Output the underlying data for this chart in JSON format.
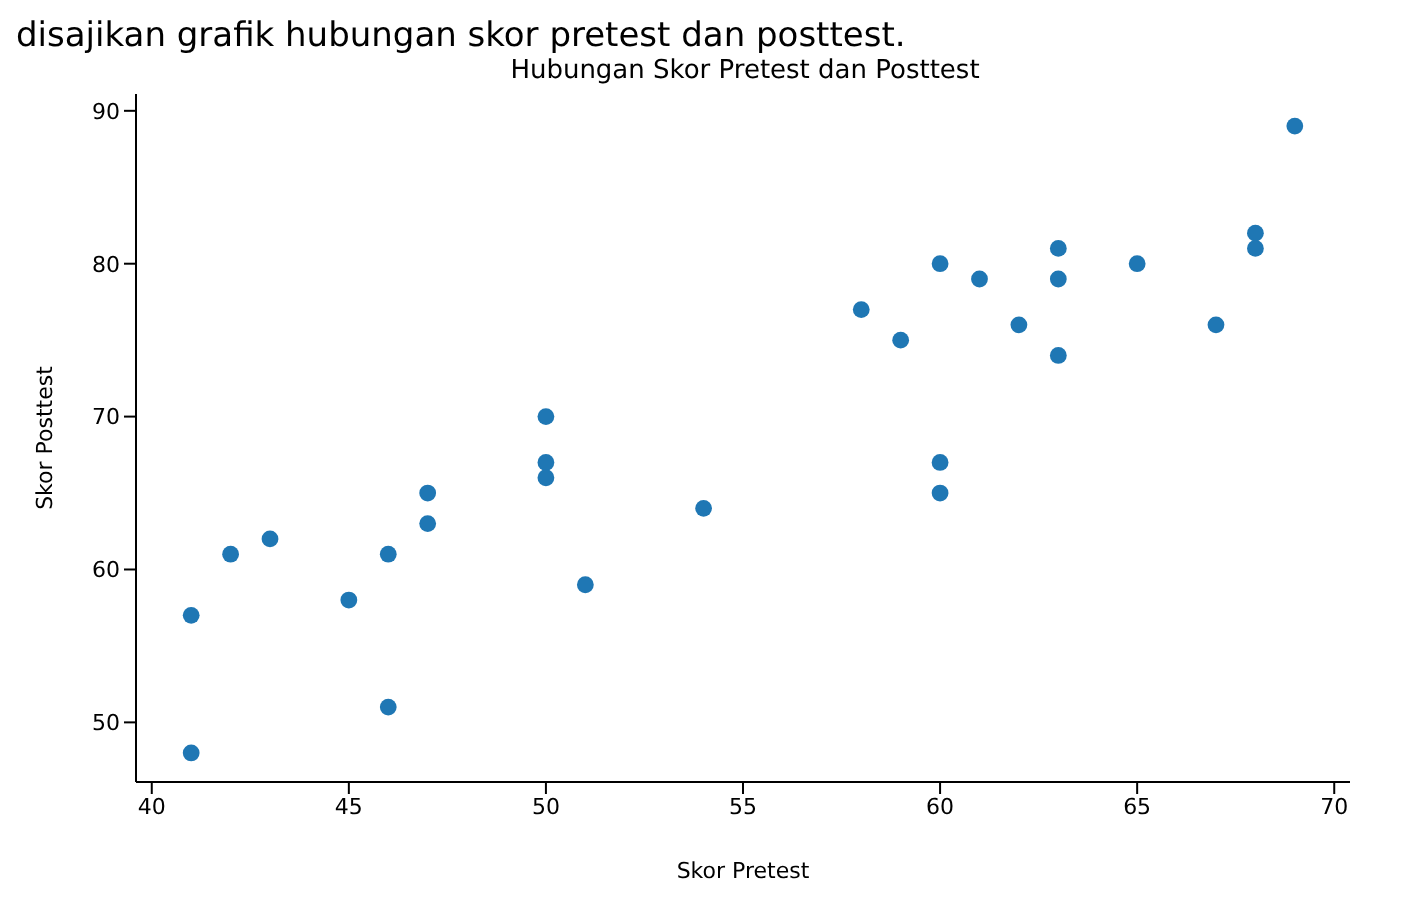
{
  "chart_data": {
    "type": "scatter",
    "title": "Hubungan Skor Pretest dan Posttest",
    "xlabel": "Skor Pretest",
    "ylabel": "Skor Posttest",
    "annotations": [
      "disajikan grafik hubungan skor pretest dan posttest."
    ],
    "x": [
      41,
      41,
      42,
      43,
      45,
      46,
      46,
      47,
      47,
      50,
      50,
      50,
      51,
      54,
      58,
      59,
      60,
      60,
      60,
      61,
      62,
      63,
      63,
      63,
      65,
      67,
      68,
      68,
      69
    ],
    "series": [
      {
        "color": "#1f77b4",
        "values": [
          57,
          48,
          61,
          62,
          58,
          61,
          51,
          65,
          63,
          70,
          67,
          66,
          59,
          64,
          77,
          75,
          80,
          67,
          65,
          79,
          76,
          81,
          79,
          74,
          80,
          76,
          82,
          81,
          89
        ]
      }
    ],
    "xlim": [
      39.6,
      70.4
    ],
    "xticks": [
      40,
      45,
      50,
      55,
      60,
      65,
      70
    ],
    "ylim": [
      46.1,
      91.1
    ],
    "yticks": [
      50,
      60,
      70,
      80,
      90
    ],
    "grid": false,
    "legend": false,
    "marker": "circle"
  }
}
